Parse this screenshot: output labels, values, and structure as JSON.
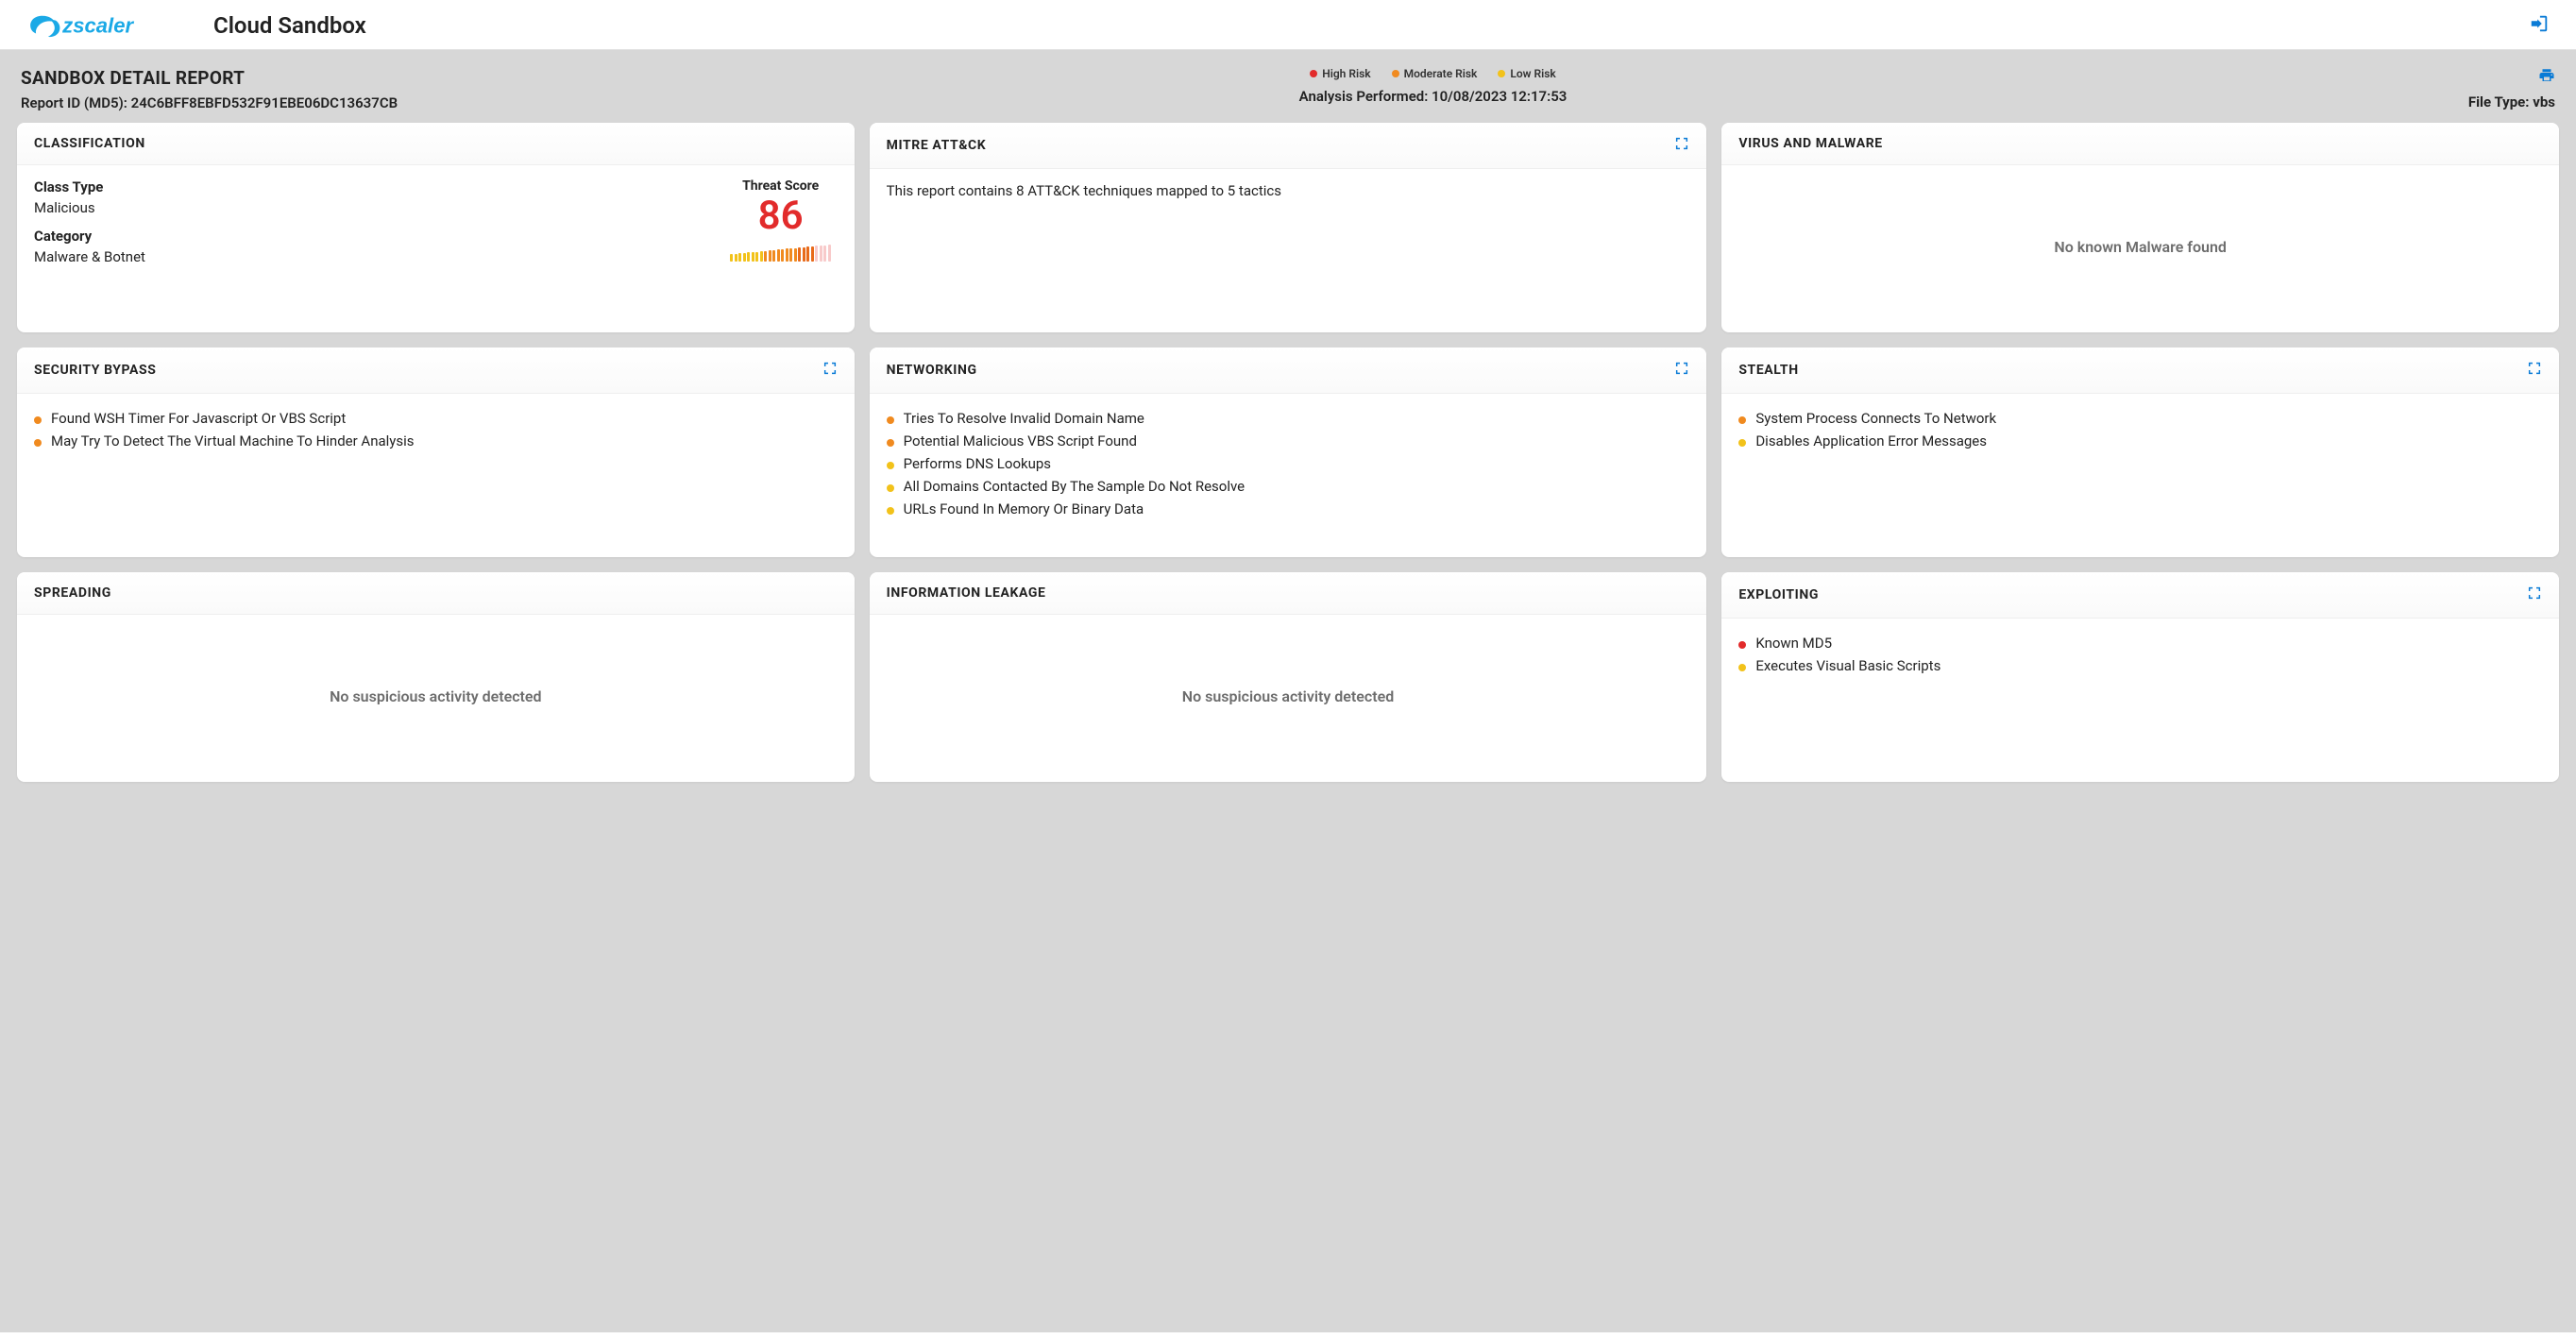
{
  "brand": {
    "name": "zscaler",
    "product": "Cloud Sandbox",
    "logo_color": "#1ba9e6"
  },
  "colors": {
    "high": "#e22b2b",
    "moderate": "#f08a1f",
    "low": "#f2c21a",
    "accent": "#0a7bd6",
    "page_bg": "#d7d7d7",
    "muted_text": "#6d6d6d"
  },
  "legend": {
    "high": "High Risk",
    "moderate": "Moderate Risk",
    "low": "Low Risk"
  },
  "meta": {
    "title": "SANDBOX DETAIL REPORT",
    "report_id_label": "Report ID (MD5): ",
    "report_id": "24C6BFF8EBFD532F91EBE06DC13637CB",
    "analysis_label": "Analysis Performed: ",
    "analysis_time": "10/08/2023 12:17:53",
    "filetype_label": "File Type: ",
    "filetype": "vbs"
  },
  "cards": {
    "classification": {
      "title": "CLASSIFICATION",
      "class_type_label": "Class Type",
      "class_type": "Malicious",
      "category_label": "Category",
      "category": "Malware & Botnet",
      "threat_label": "Threat Score",
      "threat_score": "86",
      "gauge": {
        "bars": 24,
        "value": 0.86,
        "min_height": 8,
        "max_height": 18,
        "color_stops": [
          "#f2c21a",
          "#f2c21a",
          "#f08a1f",
          "#f08a1f",
          "#e86a1a",
          "#e22b2b"
        ]
      }
    },
    "mitre": {
      "title": "MITRE ATT&CK",
      "text": "This report contains 8 ATT&CK techniques mapped to 5 tactics",
      "expandable": true
    },
    "virus": {
      "title": "VIRUS AND MALWARE",
      "empty_text": "No known Malware found"
    },
    "security_bypass": {
      "title": "SECURITY BYPASS",
      "expandable": true,
      "items": [
        {
          "risk": "moderate",
          "text": "Found WSH Timer For Javascript Or VBS Script"
        },
        {
          "risk": "moderate",
          "text": "May Try To Detect The Virtual Machine To Hinder Analysis"
        }
      ]
    },
    "networking": {
      "title": "NETWORKING",
      "expandable": true,
      "items": [
        {
          "risk": "moderate",
          "text": "Tries To Resolve Invalid Domain Name"
        },
        {
          "risk": "moderate",
          "text": "Potential Malicious VBS Script Found"
        },
        {
          "risk": "low",
          "text": "Performs DNS Lookups"
        },
        {
          "risk": "low",
          "text": "All Domains Contacted By The Sample Do Not Resolve"
        },
        {
          "risk": "low",
          "text": "URLs Found In Memory Or Binary Data"
        }
      ]
    },
    "stealth": {
      "title": "STEALTH",
      "expandable": true,
      "items": [
        {
          "risk": "moderate",
          "text": "System Process Connects To Network"
        },
        {
          "risk": "low",
          "text": "Disables Application Error Messages"
        }
      ]
    },
    "spreading": {
      "title": "SPREADING",
      "empty_text": "No suspicious activity detected"
    },
    "information_leakage": {
      "title": "INFORMATION LEAKAGE",
      "empty_text": "No suspicious activity detected"
    },
    "exploiting": {
      "title": "EXPLOITING",
      "expandable": true,
      "items": [
        {
          "risk": "high",
          "text": "Known MD5"
        },
        {
          "risk": "low",
          "text": "Executes Visual Basic Scripts"
        }
      ]
    }
  }
}
